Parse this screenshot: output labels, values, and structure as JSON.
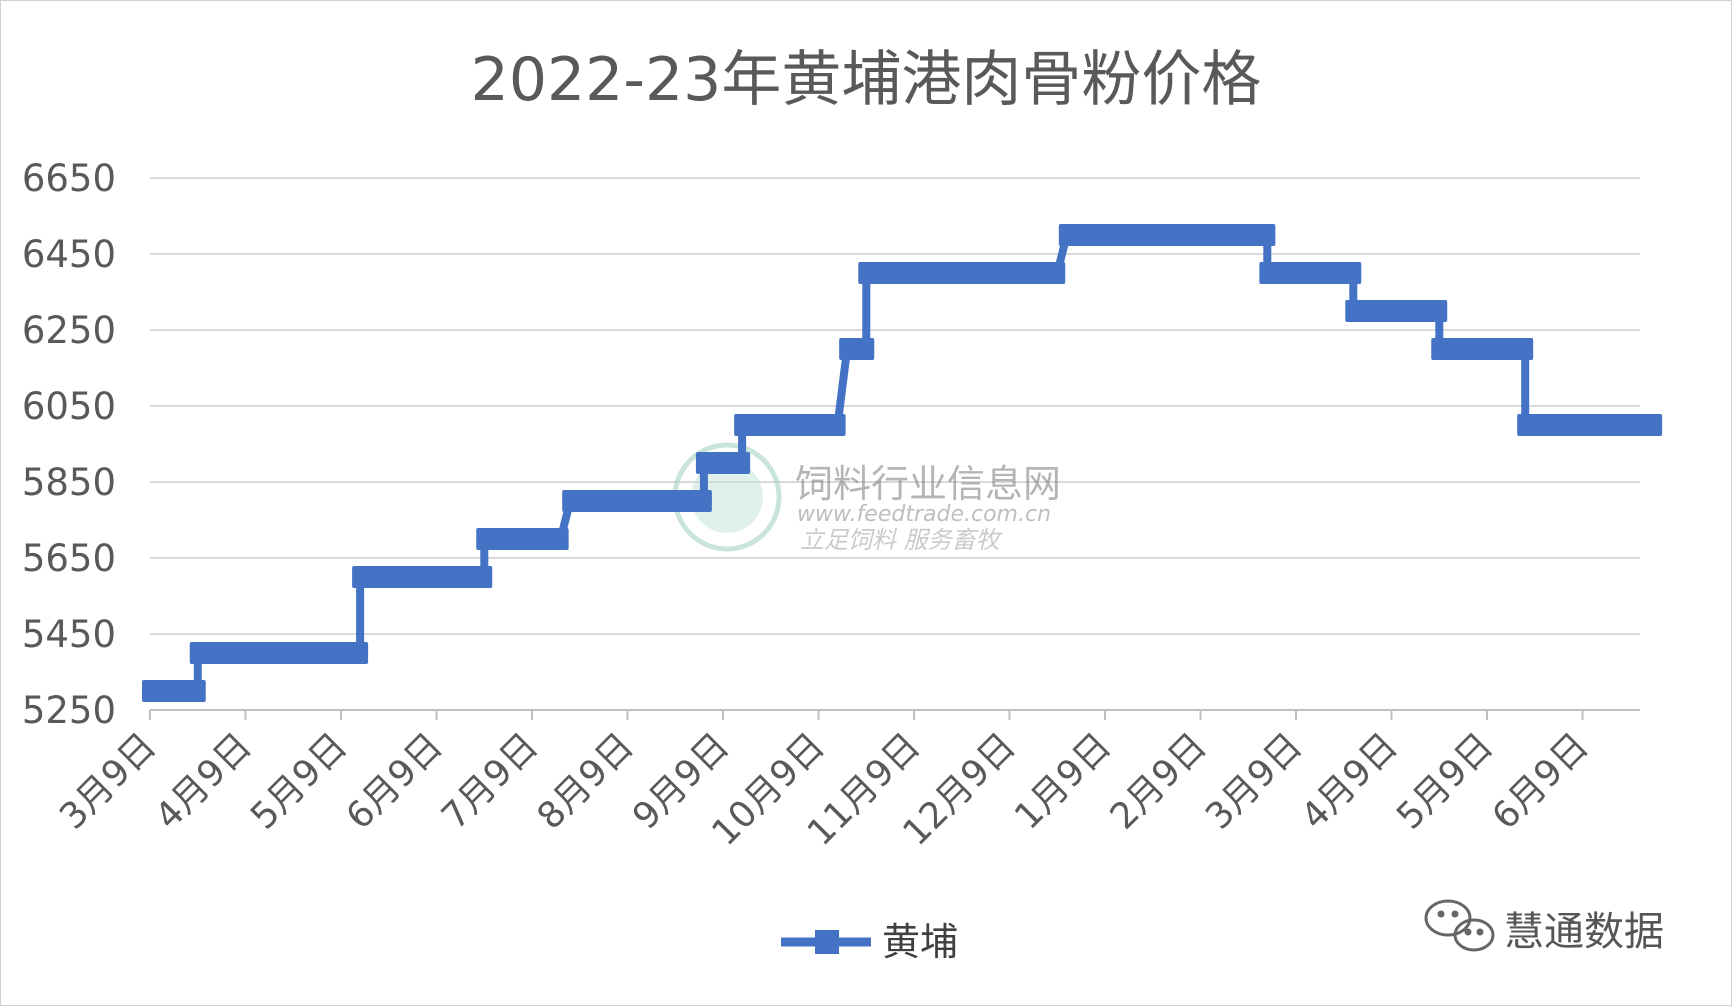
{
  "chart_data": {
    "type": "line",
    "title": "2022-23年黄埔港肉骨粉价格",
    "ylim": [
      5250,
      6650
    ],
    "y_ticks": [
      5250,
      5450,
      5650,
      5850,
      6050,
      6250,
      6450,
      6650
    ],
    "x_ticks": [
      "3月9日",
      "4月9日",
      "5月9日",
      "6月9日",
      "7月9日",
      "8月9日",
      "9月9日",
      "10月9日",
      "11月9日",
      "12月9日",
      "1月9日",
      "2月9日",
      "3月9日",
      "4月9日",
      "5月9日",
      "6月9日"
    ],
    "grid": true,
    "legend": "bottom",
    "series": [
      {
        "name": "黄埔",
        "color": "#4472C4",
        "points": [
          [
            0.0,
            5300
          ],
          [
            0.5,
            5300
          ],
          [
            0.5,
            5400
          ],
          [
            2.0,
            5400
          ],
          [
            2.2,
            5400
          ],
          [
            2.2,
            5600
          ],
          [
            3.5,
            5600
          ],
          [
            3.5,
            5700
          ],
          [
            4.3,
            5700
          ],
          [
            4.4,
            5800
          ],
          [
            5.8,
            5800
          ],
          [
            5.8,
            5900
          ],
          [
            6.2,
            5900
          ],
          [
            6.2,
            6000
          ],
          [
            7.2,
            6000
          ],
          [
            7.3,
            6200
          ],
          [
            7.5,
            6200
          ],
          [
            7.5,
            6400
          ],
          [
            9.5,
            6400
          ],
          [
            9.6,
            6500
          ],
          [
            10.4,
            6500
          ],
          [
            11.7,
            6500
          ],
          [
            11.7,
            6400
          ],
          [
            12.6,
            6400
          ],
          [
            12.6,
            6300
          ],
          [
            13.5,
            6300
          ],
          [
            13.5,
            6200
          ],
          [
            14.4,
            6200
          ],
          [
            14.4,
            6000
          ],
          [
            15.75,
            6000
          ]
        ]
      }
    ]
  },
  "watermark": {
    "name": "饲料行业信息网",
    "url": "www.feedtrade.com.cn",
    "slogan": "立足饲料 服务畜牧"
  },
  "brand": {
    "name": "慧通数据"
  }
}
